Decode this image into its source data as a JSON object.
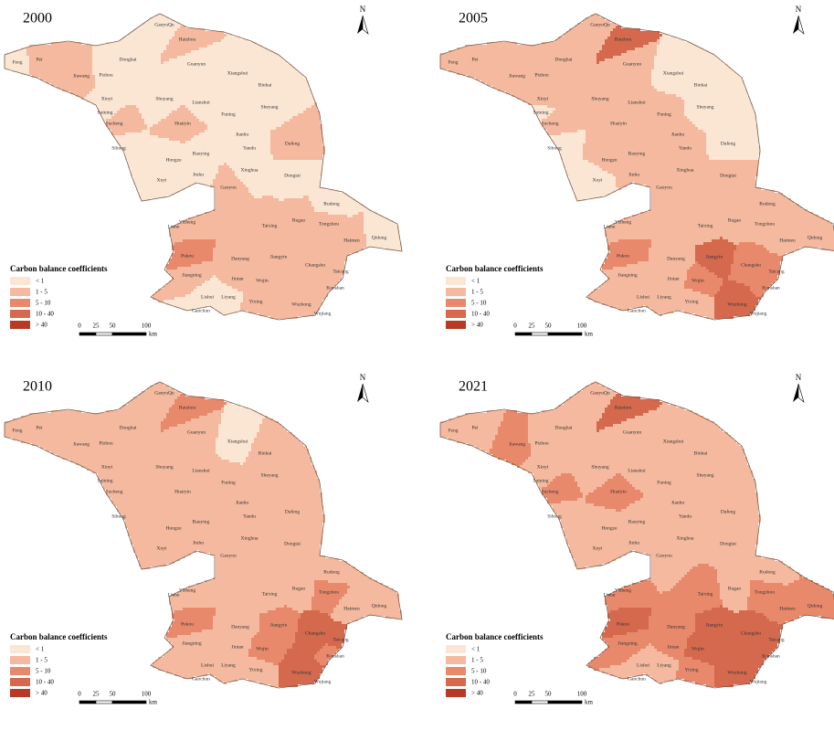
{
  "panels": [
    {
      "year": "2000",
      "classes": [
        0,
        1,
        1,
        0,
        0,
        1,
        0,
        0,
        0,
        0,
        0,
        0,
        0,
        0,
        0,
        0,
        1,
        1,
        0,
        1,
        0,
        0,
        0,
        0,
        0,
        0,
        0,
        0,
        1,
        0,
        0,
        1,
        1,
        1,
        1,
        2,
        1,
        0,
        0,
        0,
        1,
        1,
        1,
        1,
        1,
        1,
        1,
        1,
        1,
        1,
        1,
        1
      ]
    },
    {
      "year": "2005",
      "classes": [
        1,
        1,
        1,
        1,
        1,
        3,
        1,
        1,
        0,
        0,
        1,
        1,
        0,
        1,
        0,
        1,
        1,
        1,
        1,
        0,
        0,
        1,
        1,
        1,
        0,
        1,
        1,
        1,
        1,
        1,
        1,
        1,
        1,
        1,
        1,
        2,
        1,
        1,
        1,
        1,
        1,
        1,
        3,
        1,
        1,
        2,
        2,
        2,
        2,
        1,
        3,
        3
      ]
    },
    {
      "year": "2010",
      "classes": [
        1,
        1,
        1,
        1,
        1,
        2,
        1,
        1,
        0,
        1,
        1,
        1,
        1,
        1,
        1,
        1,
        1,
        1,
        1,
        1,
        1,
        1,
        1,
        1,
        1,
        1,
        1,
        1,
        1,
        1,
        1,
        1,
        1,
        1,
        1,
        2,
        1,
        1,
        1,
        1,
        1,
        1,
        2,
        2,
        1,
        3,
        3,
        2,
        2,
        1,
        3,
        3
      ]
    },
    {
      "year": "2021",
      "classes": [
        1,
        1,
        2,
        1,
        1,
        3,
        1,
        1,
        1,
        1,
        1,
        1,
        1,
        1,
        1,
        1,
        2,
        2,
        1,
        1,
        1,
        1,
        1,
        1,
        1,
        1,
        1,
        1,
        1,
        1,
        2,
        2,
        2,
        1,
        2,
        3,
        2,
        1,
        1,
        1,
        2,
        2,
        3,
        2,
        2,
        3,
        3,
        3,
        3,
        2,
        3,
        3
      ]
    }
  ],
  "counties": [
    "Feng",
    "Pei",
    "Jiawang",
    "Pizhou",
    "GanyuQu",
    "Haizhou",
    "Donghai",
    "Guanyun",
    "Xiangshui",
    "Binhai",
    "Xinyi",
    "Shuyang",
    "Suining",
    "Lianshui",
    "Sheyang",
    "Funing",
    "Sucheng",
    "Huaiyin",
    "Jianhu",
    "Dafeng",
    "Sihong",
    "Hongze",
    "Baoying",
    "Yandu",
    "Xuyi",
    "Jinhu",
    "Xinghua",
    "Dongtai",
    "Gaoyou",
    "Rudong",
    "Qidong",
    "Yizheng",
    "Taixing",
    "Rugao",
    "Liuhe",
    "Pukou",
    "Jiangning",
    "Lishui",
    "Gaochun",
    "Liyang",
    "Jintan",
    "Danyang",
    "Jiangyin",
    "Tongzhou",
    "Haimen",
    "Changshu",
    "Taicang",
    "Kunshan",
    "Wujin",
    "Yixing",
    "Wuzhong",
    "Wujiang"
  ],
  "legend": {
    "title": "Carbon balance coefficients",
    "items": [
      "< 1",
      "1 - 5",
      "5 - 10",
      "10 - 40",
      "> 40"
    ],
    "colors": [
      "#fbe6d4",
      "#f4b99e",
      "#e8896c",
      "#d4694d",
      "#b83a22"
    ]
  },
  "scale_bar": {
    "labels": [
      "0",
      "25",
      "50",
      "100"
    ],
    "unit": "km"
  },
  "north": "N"
}
